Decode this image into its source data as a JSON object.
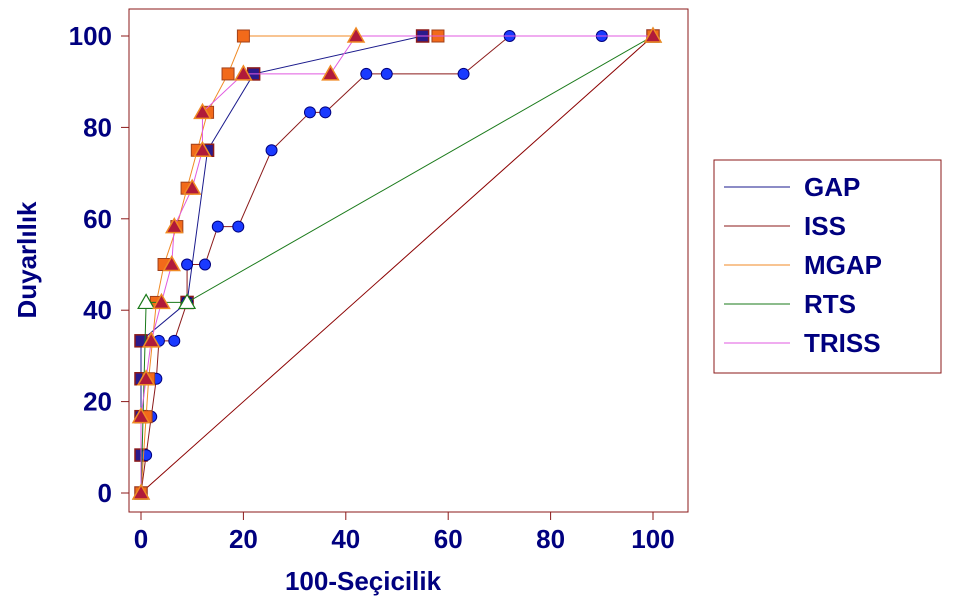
{
  "chart_data": {
    "type": "line",
    "xlabel": "100-Seçicilik",
    "ylabel": "Duyarlılık",
    "xlim": [
      -2,
      112
    ],
    "ylim": [
      -2,
      104
    ],
    "x_ticks": [
      "0",
      "20",
      "40",
      "60",
      "80",
      "100"
    ],
    "y_ticks": [
      "0",
      "20",
      "40",
      "60",
      "80",
      "100"
    ],
    "grid": false,
    "legend_position": "right",
    "reference_line": {
      "x": [
        0,
        100
      ],
      "y": [
        0,
        100
      ],
      "color": "#8b0000"
    },
    "series": [
      {
        "name": "GAP",
        "color": "#1a1a8c",
        "marker": "square",
        "points": [
          [
            0,
            0
          ],
          [
            0,
            8.3
          ],
          [
            0,
            16.7
          ],
          [
            0,
            25
          ],
          [
            0,
            33.3
          ],
          [
            9,
            41.7
          ],
          [
            13,
            75
          ],
          [
            22,
            91.7
          ],
          [
            55,
            100
          ],
          [
            100,
            100
          ]
        ]
      },
      {
        "name": "ISS",
        "color": "#8b1a1a",
        "marker": "circle",
        "points": [
          [
            0,
            0
          ],
          [
            1,
            8.3
          ],
          [
            2,
            16.7
          ],
          [
            3,
            25
          ],
          [
            3.5,
            33.3
          ],
          [
            6.5,
            33.3
          ],
          [
            9,
            41.7
          ],
          [
            9,
            50
          ],
          [
            12.5,
            50
          ],
          [
            15,
            58.3
          ],
          [
            19,
            58.3
          ],
          [
            25.5,
            75
          ],
          [
            33,
            83.3
          ],
          [
            36,
            83.3
          ],
          [
            44,
            91.7
          ],
          [
            48,
            91.7
          ],
          [
            63,
            91.7
          ],
          [
            72,
            100
          ],
          [
            90,
            100
          ],
          [
            100,
            100
          ]
        ]
      },
      {
        "name": "MGAP",
        "color": "#f08a24",
        "marker": "square-orange",
        "points": [
          [
            0,
            0
          ],
          [
            1,
            16.7
          ],
          [
            1.5,
            25
          ],
          [
            3,
            41.7
          ],
          [
            4.5,
            50
          ],
          [
            7,
            58.3
          ],
          [
            9,
            66.7
          ],
          [
            11,
            75
          ],
          [
            13,
            83.3
          ],
          [
            17,
            91.7
          ],
          [
            20,
            100
          ],
          [
            58,
            100
          ],
          [
            100,
            100
          ]
        ]
      },
      {
        "name": "RTS",
        "color": "#1a7a1a",
        "marker": "triangle-open",
        "points": [
          [
            0,
            0
          ],
          [
            1,
            41.7
          ],
          [
            9,
            41.7
          ],
          [
            100,
            100
          ]
        ]
      },
      {
        "name": "TRISS",
        "color": "#e05ae0",
        "marker": "triangle",
        "points": [
          [
            0,
            0
          ],
          [
            0,
            16.7
          ],
          [
            1,
            25
          ],
          [
            2,
            33.3
          ],
          [
            4,
            41.7
          ],
          [
            6,
            50
          ],
          [
            6.5,
            58.3
          ],
          [
            10,
            66.7
          ],
          [
            12,
            75
          ],
          [
            12,
            83.3
          ],
          [
            20,
            91.7
          ],
          [
            37,
            91.7
          ],
          [
            42,
            100
          ],
          [
            100,
            100
          ]
        ]
      }
    ]
  }
}
